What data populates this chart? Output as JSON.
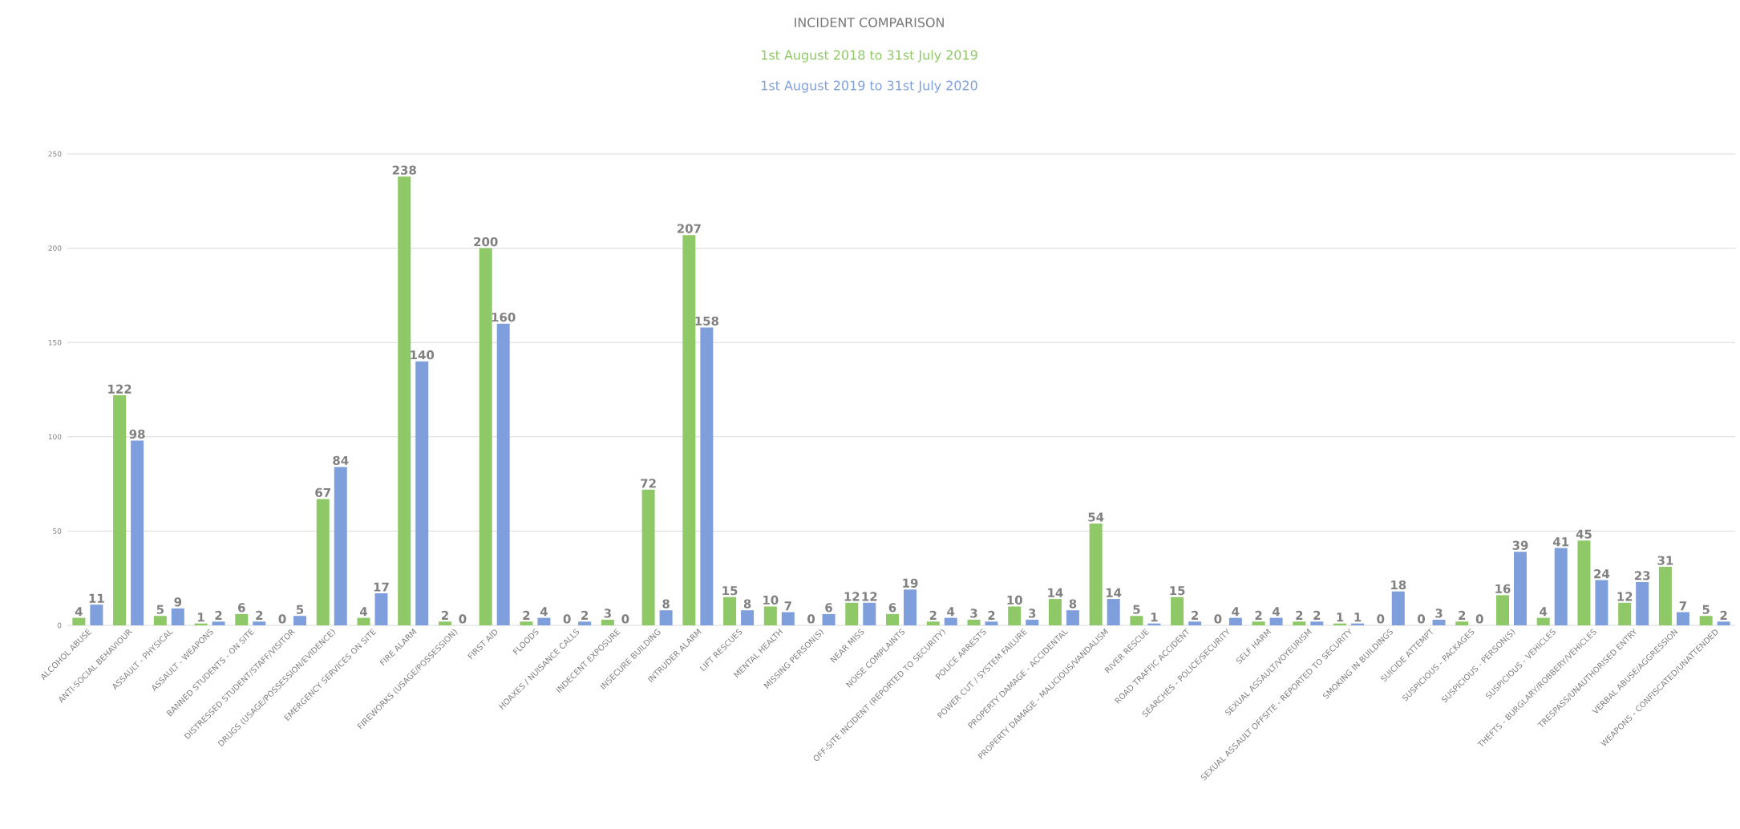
{
  "chart_data": {
    "type": "bar",
    "title": "INCIDENT COMPARISON",
    "categories": [
      "ALCOHOL ABUSE",
      "ANTI-SOCIAL BEHAVIOUR",
      "ASSAULT - PHYSICAL",
      "ASSAULT - WEAPONS",
      "BANNED STUDENTS - ON SITE",
      "DISTRESSED STUDENT/STAFF/VISITOR",
      "DRUGS (USAGE/POSSESSION/EVIDENCE)",
      "EMERGENCY SERVICES ON SITE",
      "FIRE ALARM",
      "FIREWORKS (USAGE/POSSESSION)",
      "FIRST AID",
      "FLOODS",
      "HOAXES / NUISANCE CALLS",
      "INDECENT EXPOSURE",
      "INSECURE BUILDING",
      "INTRUDER ALARM",
      "LIFT RESCUES",
      "MENTAL HEALTH",
      "MISSING PERSON(S)",
      "NEAR MISS",
      "NOISE COMPLAINTS",
      "OFF-SITE INCIDENT (REPORTED TO SECURITY)",
      "POLICE ARRESTS",
      "POWER CUT / SYSTEM FAILURE",
      "PROPERTY DAMAGE - ACCIDENTAL",
      "PROPERTY DAMAGE - MALICIOUS/VANDALISM",
      "RIVER RESCUE",
      "ROAD TRAFFIC ACCIDENT",
      "SEARCHES - POLICE/SECURITY",
      "SELF HARM",
      "SEXUAL ASSAULT/VOYEURISM",
      "SEXUAL ASSAULT OFFSITE - REPORTED TO SECURITY",
      "SMOKING IN BUILDINGS",
      "SUICIDE ATTEMPT",
      "SUSPICIOUS - PACKAGES",
      "SUSPICIOUS - PERSON(S)",
      "SUSPICIOUS - VEHICLES",
      "THEFTS - BURGLARY/ROBBERY/VEHICLES",
      "TRESPASS/UNAUTHORISED ENTRY",
      "VERBAL ABUSE/AGGRESSION",
      "WEAPONS - CONFISCATED/UNATTENDED"
    ],
    "series": [
      {
        "name": "1st August 2018 to 31st July 2019",
        "color": "#8fc866",
        "values": [
          4,
          122,
          5,
          1,
          6,
          0,
          67,
          4,
          238,
          2,
          200,
          2,
          0,
          3,
          72,
          207,
          15,
          10,
          0,
          12,
          6,
          2,
          3,
          10,
          14,
          54,
          5,
          15,
          0,
          2,
          2,
          1,
          0,
          0,
          2,
          16,
          4,
          45,
          12,
          31,
          5
        ]
      },
      {
        "name": "1st August 2019 to 31st July 2020",
        "color": "#7f9fdc",
        "values": [
          11,
          98,
          9,
          2,
          2,
          5,
          84,
          17,
          140,
          0,
          160,
          4,
          2,
          0,
          8,
          158,
          8,
          7,
          6,
          12,
          19,
          4,
          2,
          3,
          8,
          14,
          1,
          2,
          4,
          4,
          2,
          1,
          18,
          3,
          0,
          39,
          41,
          24,
          23,
          7,
          2
        ]
      }
    ],
    "ylim": [
      0,
      250
    ],
    "yticks": [
      0,
      50,
      100,
      150,
      200,
      250
    ],
    "grid": "y",
    "data_labels": true,
    "legend": "top"
  }
}
